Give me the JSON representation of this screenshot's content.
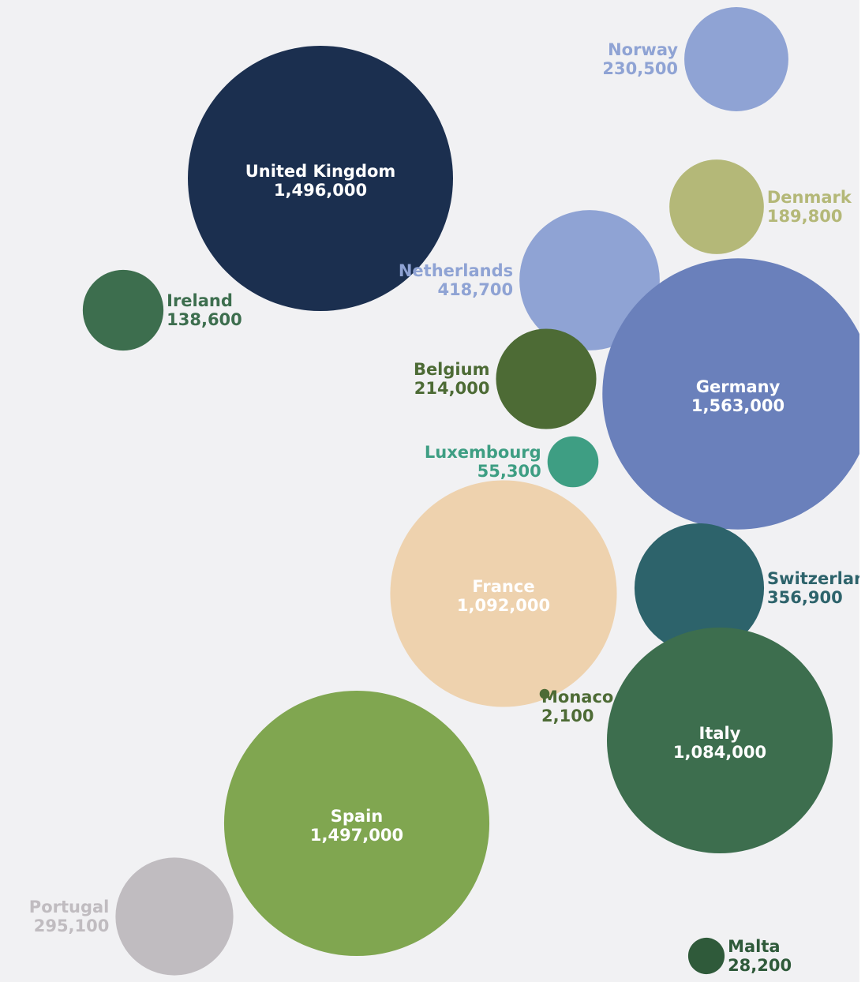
{
  "chart_data": {
    "type": "bubble",
    "title": "",
    "legend": "none",
    "grid": false,
    "points": [
      {
        "label": "United Kingdom",
        "value_text": "1,496,000",
        "value": 1496000,
        "color": "#1b2f4f"
      },
      {
        "label": "Norway",
        "value_text": "230,500",
        "value": 230500,
        "color": "#8fa3d4"
      },
      {
        "label": "Denmark",
        "value_text": "189,800",
        "value": 189800,
        "color": "#b4b878"
      },
      {
        "label": "Netherlands",
        "value_text": "418,700",
        "value": 418700,
        "color": "#8fa3d4"
      },
      {
        "label": "Ireland",
        "value_text": "138,600",
        "value": 138600,
        "color": "#3d6e4e"
      },
      {
        "label": "Germany",
        "value_text": "1,563,000",
        "value": 1563000,
        "color": "#6a80bb"
      },
      {
        "label": "Belgium",
        "value_text": "214,000",
        "value": 214000,
        "color": "#4d6b35"
      },
      {
        "label": "Luxembourg",
        "value_text": "55,300",
        "value": 55300,
        "color": "#3e9e83"
      },
      {
        "label": "France",
        "value_text": "1,092,000",
        "value": 1092000,
        "color": "#eed2ae"
      },
      {
        "label": "Switzerland",
        "value_text": "356,900",
        "value": 356900,
        "color": "#2d636b"
      },
      {
        "label": "Monaco",
        "value_text": "2,100",
        "value": 2100,
        "color": "#4d6b35"
      },
      {
        "label": "Italy",
        "value_text": "1,084,000",
        "value": 1084000,
        "color": "#3d6e4e"
      },
      {
        "label": "Spain",
        "value_text": "1,497,000",
        "value": 1497000,
        "color": "#80a650"
      },
      {
        "label": "Portugal",
        "value_text": "295,100",
        "value": 295100,
        "color": "#c0bcc0"
      },
      {
        "label": "Malta",
        "value_text": "28,200",
        "value": 28200,
        "color": "#2f5a3a"
      }
    ]
  }
}
